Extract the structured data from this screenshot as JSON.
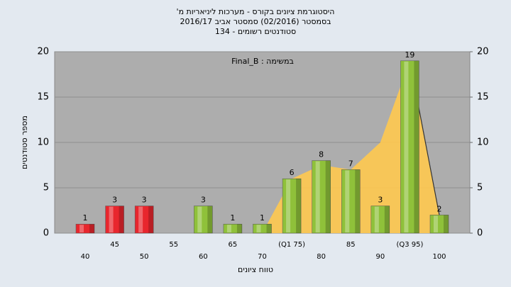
{
  "chart_data": {
    "type": "bar",
    "title": "היסטוגרמת ציונים בקורס - מערכות ליניאריות מ'",
    "subtitle": "בסמסטר (02/2016) סמסטר אביב 2016/17",
    "subtitle2": "סטודנטים רשומים - 134",
    "annotation": "במשימה : Final_B",
    "ylabel": "מספר סטודנטים",
    "xlabel": "טווח ציונים",
    "categories": [
      "40",
      "45",
      "50",
      "55",
      "60",
      "65",
      "70",
      "(Q1 75)",
      "80",
      "85",
      "90",
      "(Q3 95)",
      "100"
    ],
    "values": [
      1,
      3,
      3,
      null,
      3,
      1,
      1,
      6,
      8,
      7,
      3,
      19,
      2
    ],
    "colors": [
      "#e8262d",
      "#e8262d",
      "#e8262d",
      null,
      "#8fc13a",
      "#8fc13a",
      "#8fc13a",
      "#8fc13a",
      "#8fc13a",
      "#8fc13a",
      "#8fc13a",
      "#8fc13a",
      "#8fc13a"
    ],
    "overlay": {
      "color": "#ffc94f",
      "values": [
        null,
        null,
        null,
        null,
        null,
        null,
        0,
        6,
        7.5,
        7,
        10,
        19,
        2
      ]
    },
    "ylim": [
      0,
      20
    ],
    "yticks": [
      0,
      5,
      10,
      15,
      20
    ],
    "y2lim": [
      0,
      20
    ],
    "y2ticks": [
      0,
      5,
      10,
      15,
      20
    ],
    "grid": true
  }
}
